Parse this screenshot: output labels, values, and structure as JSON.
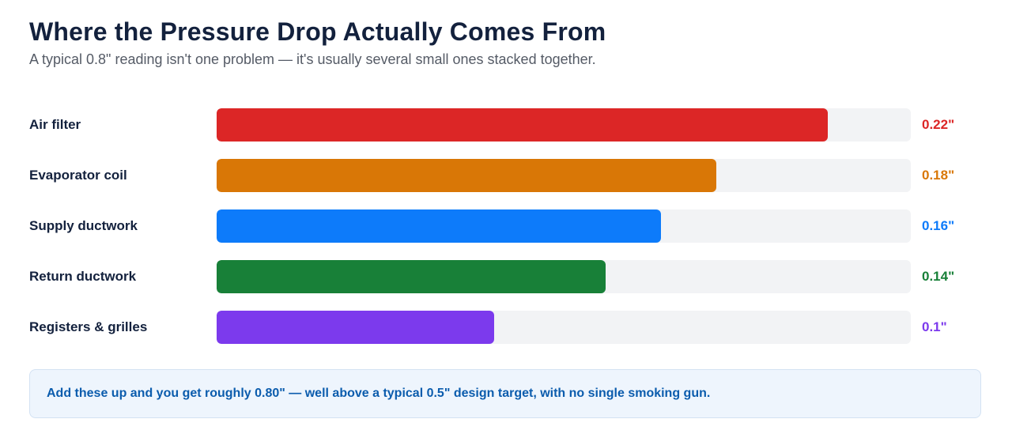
{
  "header": {
    "title": "Where the Pressure Drop Actually Comes From",
    "subtitle": "A typical 0.8\" reading isn't one problem — it's usually several small ones stacked together."
  },
  "chart_data": {
    "type": "bar",
    "orientation": "horizontal",
    "categories": [
      "Air filter",
      "Evaporator coil",
      "Supply ductwork",
      "Return ductwork",
      "Registers & grilles"
    ],
    "values": [
      0.22,
      0.18,
      0.16,
      0.14,
      0.1
    ],
    "value_labels": [
      "0.22\"",
      "0.18\"",
      "0.16\"",
      "0.14\"",
      "0.1\""
    ],
    "xlim": [
      0,
      0.25
    ],
    "colors": [
      "#dc2626",
      "#d97706",
      "#0d7bfa",
      "#188038",
      "#7c3aed"
    ],
    "grid": false,
    "legend": "none"
  },
  "callout": {
    "text": "Add these up and you get roughly 0.80\" — well above a typical 0.5\" design target, with no single smoking gun."
  }
}
